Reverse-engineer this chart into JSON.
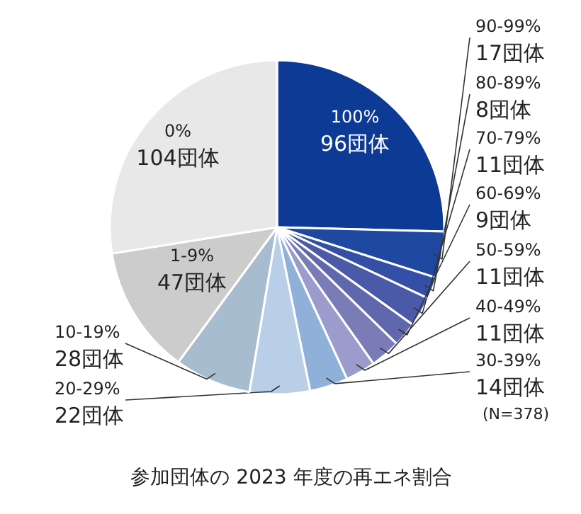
{
  "chart_data": {
    "type": "pie",
    "title": "参加団体の 2023 年度の再エネ割合",
    "categories": [
      "100%",
      "90-99%",
      "80-89%",
      "70-79%",
      "60-69%",
      "50-59%",
      "40-49%",
      "30-39%",
      "20-29%",
      "10-19%",
      "1-9%",
      "0%"
    ],
    "values": [
      96,
      17,
      8,
      11,
      9,
      11,
      11,
      14,
      22,
      28,
      47,
      104
    ],
    "value_labels": [
      "96団体",
      "17団体",
      "8団体",
      "11団体",
      "9団体",
      "11団体",
      "11団体",
      "14団体",
      "22団体",
      "28団体",
      "47団体",
      "104団体"
    ],
    "colors": [
      "#0d3a94",
      "#1f48a0",
      "#3350a6",
      "#4a5aa8",
      "#6068ad",
      "#7a7cb8",
      "#9b9ccc",
      "#8fb0d8",
      "#b9cfe8",
      "#a7bccf",
      "#cccccc",
      "#e8e8e8"
    ],
    "annotations": [
      "(N=378)"
    ]
  }
}
